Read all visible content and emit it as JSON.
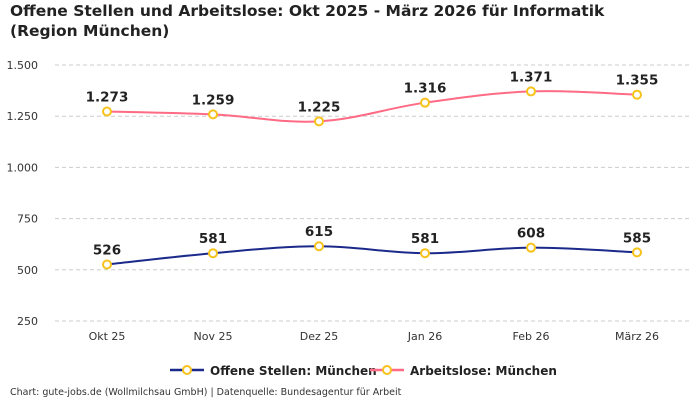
{
  "chart_data": {
    "type": "line",
    "title": "Offene Stellen und Arbeitslose: Okt 2025 - März 2026 für Informatik (Region München)",
    "categories": [
      "Okt 25",
      "Nov 25",
      "Dez 25",
      "Jan 26",
      "Feb 26",
      "März 26"
    ],
    "ylim": [
      250,
      1500
    ],
    "yticks": [
      250,
      500,
      750,
      1000,
      1250,
      1500
    ],
    "ytick_labels": [
      "250",
      "500",
      "750",
      "1.000",
      "1.250",
      "1.500"
    ],
    "grid": true,
    "legend_position": "bottom",
    "series": [
      {
        "name": "Offene Stellen: München",
        "color": "#1b2a8a",
        "values": [
          526,
          581,
          615,
          581,
          608,
          585
        ],
        "labels": [
          "526",
          "581",
          "615",
          "581",
          "608",
          "585"
        ]
      },
      {
        "name": "Arbeitslose: München",
        "color": "#ff6b84",
        "values": [
          1273,
          1259,
          1225,
          1316,
          1371,
          1355
        ],
        "labels": [
          "1.273",
          "1.259",
          "1.225",
          "1.316",
          "1.371",
          "1.355"
        ]
      }
    ],
    "marker_color": "#f6c21c"
  },
  "footer": "Chart: gute-jobs.de (Wollmilchsau GmbH) | Datenquelle: Bundesagentur für Arbeit"
}
